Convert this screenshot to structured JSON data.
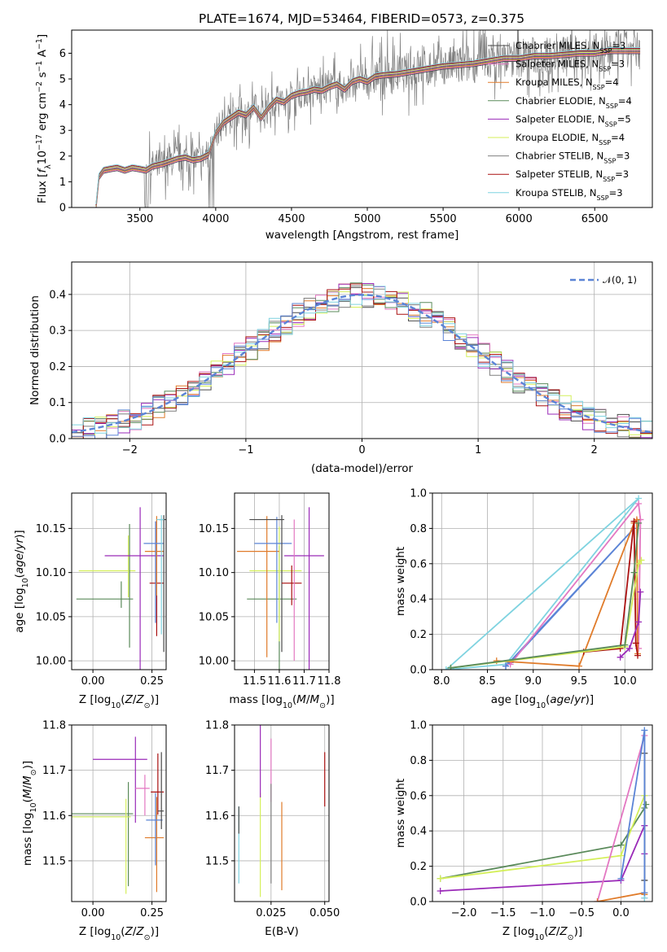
{
  "title": "PLATE=1674, MJD=53464, FIBERID=0573, z=0.375",
  "colors": {
    "Chabrier MILES": "#4a4a4a",
    "Salpeter MILES": "#e377c2",
    "Kroupa MILES": "#e07b2a",
    "Chabrier ELODIE": "#5a8a5a",
    "Salpeter ELODIE": "#9a2ab8",
    "Kroupa ELODIE": "#d4ef5a",
    "Chabrier STELIB": "#7f7f7f",
    "Salpeter STELIB": "#aa1111",
    "Kroupa STELIB": "#7fd3e0",
    "blue": "#5b84d6"
  },
  "chart_data": [
    {
      "id": "spectrum",
      "type": "line",
      "xlabel": "wavelength [Angstrom, rest frame]",
      "ylabel": "Flux [f_λ10^-17 erg cm^-2 s^-1 A^-1]",
      "xlim": [
        3050,
        6880
      ],
      "ylim": [
        0,
        6.9
      ],
      "xticks": [
        "3500",
        "4000",
        "4500",
        "5000",
        "5500",
        "6000",
        "6500"
      ],
      "yticks": [
        "0",
        "1",
        "2",
        "3",
        "4",
        "5",
        "6"
      ],
      "legend": [
        {
          "name": "Chabrier MILES",
          "nssp": "3"
        },
        {
          "name": "Salpeter MILES",
          "nssp": "3"
        },
        {
          "name": "Kroupa MILES",
          "nssp": "4"
        },
        {
          "name": "Chabrier ELODIE",
          "nssp": "4"
        },
        {
          "name": "Salpeter ELODIE",
          "nssp": "5"
        },
        {
          "name": "Kroupa ELODIE",
          "nssp": "4"
        },
        {
          "name": "Chabrier STELIB",
          "nssp": "3"
        },
        {
          "name": "Salpeter STELIB",
          "nssp": "3"
        },
        {
          "name": "Kroupa STELIB",
          "nssp": "3"
        }
      ],
      "model_curve": {
        "x": [
          3210,
          3230,
          3260,
          3300,
          3350,
          3400,
          3450,
          3500,
          3540,
          3580,
          3650,
          3700,
          3750,
          3800,
          3850,
          3900,
          3950,
          4000,
          4050,
          4100,
          4150,
          4200,
          4250,
          4300,
          4350,
          4400,
          4450,
          4500,
          4550,
          4600,
          4650,
          4700,
          4750,
          4800,
          4850,
          4900,
          4950,
          5000,
          5050,
          5100,
          5200,
          5300,
          5400,
          5500,
          5600,
          5700,
          5800,
          5900,
          6000,
          6100,
          6200,
          6300,
          6400,
          6500,
          6600,
          6700,
          6800
        ],
        "y": [
          0,
          1.2,
          1.45,
          1.5,
          1.55,
          1.45,
          1.55,
          1.5,
          1.45,
          1.6,
          1.7,
          1.8,
          1.9,
          1.95,
          1.85,
          1.9,
          2.05,
          2.9,
          3.3,
          3.5,
          3.7,
          3.6,
          3.9,
          3.5,
          3.9,
          4.2,
          4.1,
          4.35,
          4.45,
          4.5,
          4.6,
          4.55,
          4.7,
          4.8,
          4.6,
          4.9,
          5.0,
          4.9,
          5.1,
          5.15,
          5.2,
          5.3,
          5.4,
          5.5,
          5.55,
          5.6,
          5.7,
          5.8,
          5.8,
          5.9,
          5.9,
          5.95,
          6.0,
          6.0,
          6.1,
          6.1,
          6.1
        ]
      }
    },
    {
      "id": "residuals",
      "type": "bar",
      "xlabel": "(data-model)/error",
      "ylabel": "Normed distribution",
      "xlim": [
        -2.5,
        2.5
      ],
      "ylim": [
        0,
        0.49
      ],
      "xticks": [
        "−2",
        "−1",
        "0",
        "1",
        "2"
      ],
      "yticks": [
        "0.0",
        "0.1",
        "0.2",
        "0.3",
        "0.4"
      ],
      "legend": "𝒩(0, 1)",
      "grid": true
    },
    {
      "id": "age-vs-Z",
      "type": "scatter",
      "xlabel": "Z [log10(Z/Z⊙)]",
      "ylabel": "age [log10(age/yr)]",
      "xlim": [
        -0.09,
        0.31
      ],
      "ylim": [
        9.99,
        10.19
      ],
      "xticks": [
        "0.00",
        "0.25"
      ],
      "yticks": [
        "10.00",
        "10.05",
        "10.10",
        "10.15"
      ],
      "points": [
        {
          "series": "Chabrier ELODIE",
          "x": 0.12,
          "y": 10.07,
          "xerr": [
            0.19,
            0.05
          ],
          "yerr": [
            0.01,
            0.02
          ]
        },
        {
          "series": "Kroupa ELODIE",
          "x": 0.15,
          "y": 10.102,
          "xerr": [
            0.21,
            0.03
          ],
          "yerr": [
            0.03,
            0.04
          ]
        },
        {
          "series": "Chabrier ELODIE",
          "x": 0.155,
          "y": 10.085,
          "xerr": [
            0,
            0
          ],
          "yerr": [
            0.07,
            0.07
          ]
        },
        {
          "series": "Salpeter ELODIE",
          "x": 0.2,
          "y": 10.119,
          "xerr": [
            0.15,
            0.1
          ],
          "yerr": [
            0.13,
            0.055
          ]
        },
        {
          "series": "Salpeter STELIB",
          "x": 0.27,
          "y": 10.088,
          "xerr": [
            0.03,
            0.03
          ],
          "yerr": [
            0.06,
            0.07
          ]
        },
        {
          "series": "Kroupa MILES",
          "x": 0.27,
          "y": 10.124,
          "xerr": [
            0.05,
            0.03
          ],
          "yerr": [
            0.05,
            0.04
          ]
        },
        {
          "series": "blue",
          "x": 0.265,
          "y": 10.133,
          "xerr": [
            0.05,
            0.035
          ],
          "yerr": [
            0.09,
            0.025
          ]
        },
        {
          "series": "Chabrier MILES",
          "x": 0.3,
          "y": 10.16,
          "xerr": [
            0.02,
            0.01
          ],
          "yerr": [
            0.15,
            0.005
          ]
        },
        {
          "series": "Kroupa STELIB",
          "x": 0.29,
          "y": 10.16,
          "xerr": [
            0.02,
            0.01
          ],
          "yerr": [
            0.13,
            0.005
          ]
        }
      ]
    },
    {
      "id": "age-vs-mass",
      "type": "scatter",
      "xlabel": "mass [log10(M/M⊙)]",
      "ylabel": "",
      "xlim": [
        11.42,
        11.8
      ],
      "ylim": [
        9.99,
        10.19
      ],
      "xticks": [
        "11.5",
        "11.6",
        "11.7",
        "11.8"
      ],
      "yticks": [
        "10.00",
        "10.05",
        "10.10",
        "10.15"
      ],
      "points": [
        {
          "series": "Chabrier ELODIE",
          "x": 11.6,
          "y": 10.07,
          "xerr": [
            0.13,
            0.07
          ],
          "yerr": [
            0.08,
            0.06
          ]
        },
        {
          "series": "Kroupa ELODIE",
          "x": 11.6,
          "y": 10.102,
          "xerr": [
            0.12,
            0.09
          ],
          "yerr": [
            0.08,
            0.05
          ]
        },
        {
          "series": "Salpeter ELODIE",
          "x": 11.72,
          "y": 10.119,
          "xerr": [
            0.1,
            0.06
          ],
          "yerr": [
            0.13,
            0.055
          ]
        },
        {
          "series": "Kroupa MILES",
          "x": 11.55,
          "y": 10.124,
          "xerr": [
            0.12,
            0.05
          ],
          "yerr": [
            0.12,
            0.04
          ]
        },
        {
          "series": "blue",
          "x": 11.59,
          "y": 10.133,
          "xerr": [
            0.09,
            0.06
          ],
          "yerr": [
            0.09,
            0.03
          ]
        },
        {
          "series": "Chabrier MILES",
          "x": 11.61,
          "y": 10.16,
          "xerr": [
            0.13,
            0.01
          ],
          "yerr": [
            0.15,
            0.005
          ]
        },
        {
          "series": "Salpeter STELIB",
          "x": 11.65,
          "y": 10.088,
          "xerr": [
            0.04,
            0.04
          ],
          "yerr": [
            0.025,
            0.02
          ]
        },
        {
          "series": "Salpeter MILES",
          "x": 11.66,
          "y": 10.05,
          "xerr": [
            0,
            0
          ],
          "yerr": [
            0.05,
            0.11
          ]
        }
      ]
    },
    {
      "id": "massweight-vs-age",
      "type": "line",
      "xlabel": "age [log10(age/yr)]",
      "ylabel": "mass weight",
      "xlim": [
        7.9,
        10.3
      ],
      "ylim": [
        0,
        1.0
      ],
      "xticks": [
        "8.0",
        "8.5",
        "9.0",
        "9.5",
        "10.0"
      ],
      "yticks": [
        "0.0",
        "0.2",
        "0.4",
        "0.6",
        "0.8",
        "1.0"
      ],
      "series": [
        {
          "name": "Kroupa STELIB",
          "x": [
            8.05,
            8.7,
            10.15,
            8.05
          ],
          "y": [
            0.0,
            0.03,
            0.97,
            0.0
          ]
        },
        {
          "name": "blue",
          "x": [
            8.7,
            8.75,
            10.1,
            8.7
          ],
          "y": [
            0.02,
            0.04,
            0.8,
            0.02
          ]
        },
        {
          "name": "Salpeter MILES",
          "x": [
            8.75,
            10.15,
            10.17,
            10.15
          ],
          "y": [
            0.03,
            0.94,
            0.85,
            0.12
          ]
        },
        {
          "name": "Kroupa MILES",
          "x": [
            8.6,
            9.5,
            10.1,
            10.13,
            10.14
          ],
          "y": [
            0.05,
            0.02,
            0.83,
            0.85,
            0.09
          ]
        },
        {
          "name": "Salpeter STELIB",
          "x": [
            9.55,
            9.95,
            10.1,
            10.12,
            10.14
          ],
          "y": [
            0.1,
            0.12,
            0.84,
            0.15,
            0.08
          ]
        },
        {
          "name": "Kroupa ELODIE",
          "x": [
            8.1,
            10.0,
            10.15,
            10.18
          ],
          "y": [
            0.01,
            0.13,
            0.6,
            0.62
          ]
        },
        {
          "name": "Chabrier ELODIE",
          "x": [
            8.1,
            10.0,
            10.1,
            10.15
          ],
          "y": [
            0.01,
            0.14,
            0.55,
            0.83
          ]
        },
        {
          "name": "Salpeter ELODIE",
          "x": [
            9.95,
            10.05,
            10.15,
            10.17
          ],
          "y": [
            0.07,
            0.12,
            0.27,
            0.44
          ]
        }
      ]
    },
    {
      "id": "mass-vs-Z",
      "type": "scatter",
      "xlabel": "Z [log10(Z/Z⊙)]",
      "ylabel": "mass [log10(M/M⊙)]",
      "xlim": [
        -0.09,
        0.31
      ],
      "ylim": [
        11.41,
        11.8
      ],
      "xticks": [
        "0.00",
        "0.25"
      ],
      "yticks": [
        "11.5",
        "11.6",
        "11.7",
        "11.8"
      ],
      "points": [
        {
          "series": "Chabrier ELODIE",
          "x": 0.15,
          "y": 11.604,
          "xerr": [
            0.24,
            0.02
          ],
          "yerr": [
            0.16,
            0.07
          ]
        },
        {
          "series": "Kroupa ELODIE",
          "x": 0.14,
          "y": 11.597,
          "xerr": [
            0.23,
            0.02
          ],
          "yerr": [
            0.17,
            0.04
          ]
        },
        {
          "series": "Salpeter ELODIE",
          "x": 0.18,
          "y": 11.724,
          "xerr": [
            0.18,
            0.05
          ],
          "yerr": [
            0.14,
            0.05
          ]
        },
        {
          "series": "Salpeter MILES",
          "x": 0.22,
          "y": 11.66,
          "xerr": [
            0.04,
            0.02
          ],
          "yerr": [
            0.06,
            0.03
          ]
        },
        {
          "series": "Kroupa MILES",
          "x": 0.27,
          "y": 11.551,
          "xerr": [
            0.05,
            0.03
          ],
          "yerr": [
            0.12,
            0.09
          ]
        },
        {
          "series": "blue",
          "x": 0.265,
          "y": 11.59,
          "xerr": [
            0.04,
            0.03
          ],
          "yerr": [
            0.1,
            0.06
          ]
        },
        {
          "series": "Salpeter STELIB",
          "x": 0.275,
          "y": 11.652,
          "xerr": [
            0.03,
            0.025
          ],
          "yerr": [
            0.05,
            0.085
          ]
        },
        {
          "series": "Chabrier MILES",
          "x": 0.29,
          "y": 11.61,
          "xerr": [
            0.015,
            0.01
          ],
          "yerr": [
            0.04,
            0.13
          ]
        }
      ]
    },
    {
      "id": "mass-vs-EBV",
      "type": "scatter",
      "xlabel": "E(B-V)",
      "ylabel": "",
      "xlim": [
        0.008,
        0.052
      ],
      "ylim": [
        11.41,
        11.8
      ],
      "xticks": [
        "0.025",
        "0.050"
      ],
      "yticks": [
        "11.5",
        "11.6",
        "11.7",
        "11.8"
      ],
      "points": [
        {
          "series": "Kroupa STELIB",
          "x": 0.01,
          "y": 11.53,
          "xerr": [
            0,
            0
          ],
          "yerr": [
            0.08,
            0.09
          ]
        },
        {
          "series": "Chabrier MILES",
          "x": 0.01,
          "y": 11.6,
          "xerr": [
            0,
            0
          ],
          "yerr": [
            0.04,
            0.02
          ]
        },
        {
          "series": "Kroupa ELODIE",
          "x": 0.02,
          "y": 11.55,
          "xerr": [
            0,
            0
          ],
          "yerr": [
            0.13,
            0.1
          ]
        },
        {
          "series": "Salpeter ELODIE",
          "x": 0.02,
          "y": 11.72,
          "xerr": [
            0,
            0
          ],
          "yerr": [
            0.08,
            0.1
          ]
        },
        {
          "series": "Salpeter MILES",
          "x": 0.025,
          "y": 11.7,
          "xerr": [
            0,
            0
          ],
          "yerr": [
            0.07,
            0.07
          ]
        },
        {
          "series": "Chabrier STELIB",
          "x": 0.025,
          "y": 11.55,
          "xerr": [
            0,
            0
          ],
          "yerr": [
            0.1,
            0.12
          ]
        },
        {
          "series": "Kroupa MILES",
          "x": 0.03,
          "y": 11.535,
          "xerr": [
            0,
            0
          ],
          "yerr": [
            0.1,
            0.095
          ]
        },
        {
          "series": "Salpeter STELIB",
          "x": 0.05,
          "y": 11.68,
          "xerr": [
            0,
            0
          ],
          "yerr": [
            0.06,
            0.06
          ]
        }
      ]
    },
    {
      "id": "massweight-vs-Z",
      "type": "line",
      "xlabel": "Z [log10(Z/Z⊙)]",
      "ylabel": "mass weight",
      "xlim": [
        -2.4,
        0.4
      ],
      "ylim": [
        0,
        1.0
      ],
      "xticks": [
        "−2.0",
        "−1.5",
        "−1.0",
        "−0.5",
        "0.0"
      ],
      "yticks": [
        "0.0",
        "0.2",
        "0.4",
        "0.6",
        "0.8",
        "1.0"
      ],
      "series": [
        {
          "name": "Chabrier ELODIE",
          "x": [
            -2.3,
            0.0,
            0.3,
            0.32
          ],
          "y": [
            0.13,
            0.32,
            0.53,
            0.55
          ]
        },
        {
          "name": "Kroupa ELODIE",
          "x": [
            -2.3,
            0.0,
            0.3
          ],
          "y": [
            0.13,
            0.26,
            0.6
          ]
        },
        {
          "name": "Salpeter ELODIE",
          "x": [
            -2.3,
            0.0,
            0.3,
            0.3
          ],
          "y": [
            0.06,
            0.12,
            0.43,
            0.27
          ]
        },
        {
          "name": "Salpeter MILES",
          "x": [
            -0.3,
            0.3,
            0.3
          ],
          "y": [
            0.0,
            0.94,
            0.02
          ]
        },
        {
          "name": "Kroupa MILES",
          "x": [
            -0.3,
            0.3,
            0.3
          ],
          "y": [
            0.0,
            0.05,
            0.04
          ]
        },
        {
          "name": "Kroupa STELIB",
          "x": [
            0.3,
            0.3
          ],
          "y": [
            0.97,
            0.02
          ]
        },
        {
          "name": "Chabrier MILES",
          "x": [
            0.3,
            0.3
          ],
          "y": [
            0.84,
            0.12
          ]
        },
        {
          "name": "blue",
          "x": [
            0.0,
            0.3,
            0.3
          ],
          "y": [
            0.13,
            0.97,
            0.05
          ]
        }
      ]
    }
  ]
}
